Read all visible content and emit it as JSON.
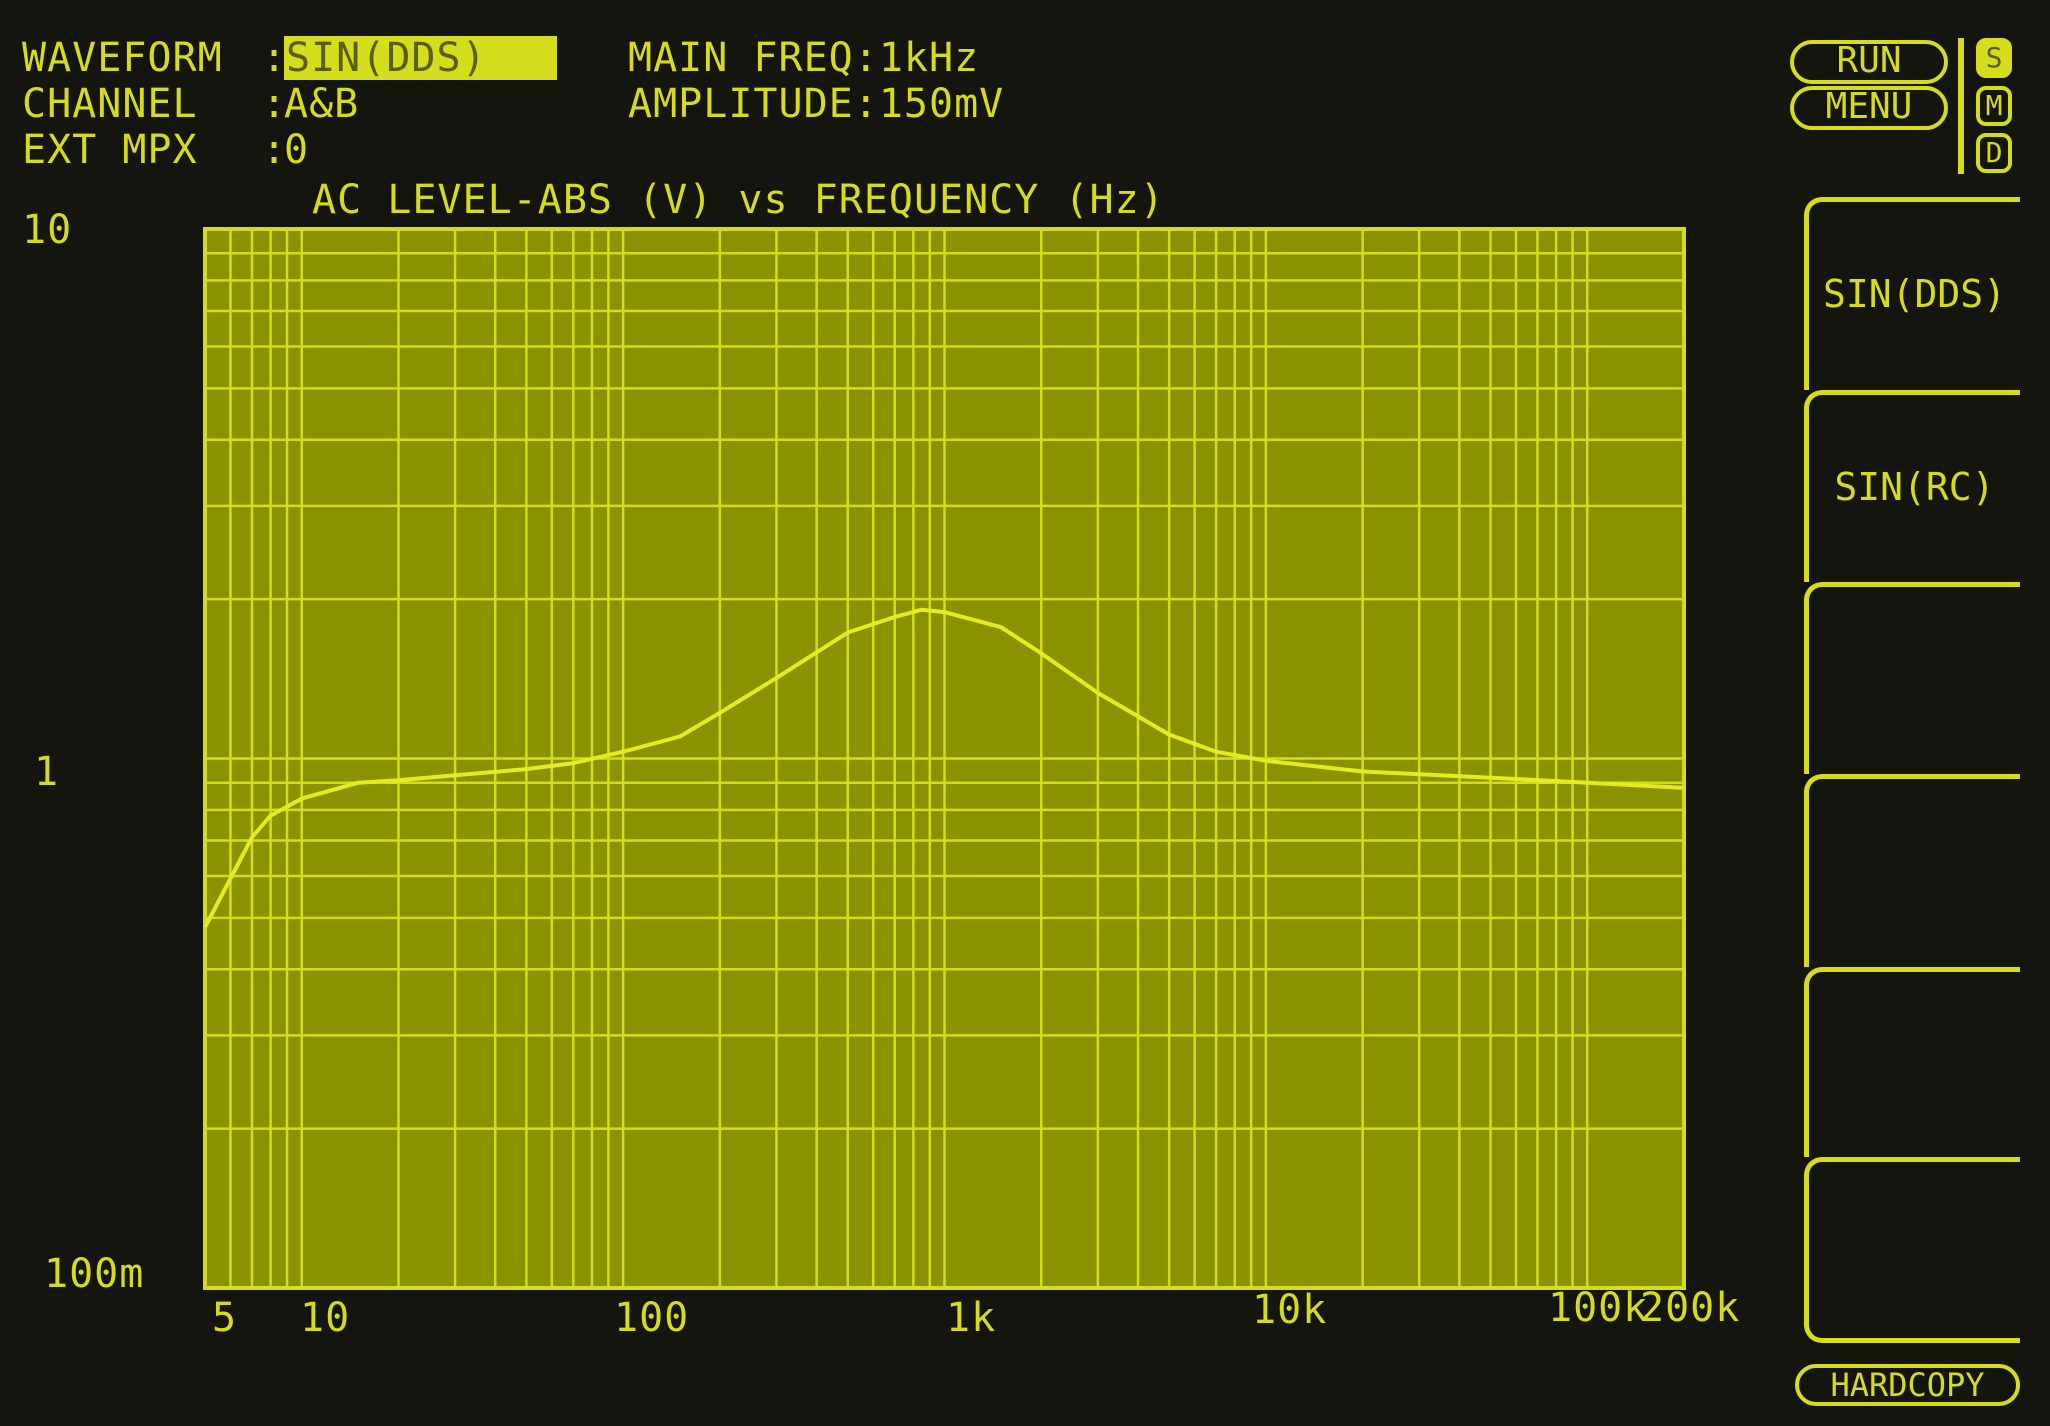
{
  "header": {
    "waveform_label": "WAVEFORM",
    "waveform_value": "SIN(DDS)",
    "channel_label": "CHANNEL",
    "channel_value": "A&B",
    "ext_mpx_label": "EXT MPX",
    "ext_mpx_value": "0",
    "main_freq_label": "MAIN FREQ:",
    "main_freq_value": "1kHz",
    "amplitude_label": "AMPLITUDE:",
    "amplitude_value": "150mV"
  },
  "controls": {
    "run_label": "RUN",
    "menu_label": "MENU",
    "modes": [
      {
        "label": "S",
        "active": true
      },
      {
        "label": "M",
        "active": false
      },
      {
        "label": "D",
        "active": false
      }
    ],
    "softkeys": [
      "SIN(DDS)",
      "SIN(RC)",
      "",
      "",
      "",
      ""
    ],
    "hardcopy_label": "HARDCOPY"
  },
  "colors": {
    "background": "#151510",
    "plot_fill": "#8a9200",
    "grid": "#d4dc1c",
    "trace": "#e4ec20"
  },
  "chart_data": {
    "type": "line",
    "title": "AC LEVEL-ABS (V) vs FREQUENCY (Hz)",
    "x_scale": "log",
    "y_scale": "log",
    "xlim": [
      5,
      200000
    ],
    "ylim": [
      0.1,
      10
    ],
    "grid": true,
    "x_tick_labels": [
      {
        "value": 5,
        "label": "5"
      },
      {
        "value": 10,
        "label": "10"
      },
      {
        "value": 100,
        "label": "100"
      },
      {
        "value": 1000,
        "label": "1k"
      },
      {
        "value": 10000,
        "label": "10k"
      },
      {
        "value": 100000,
        "label": "100k"
      },
      {
        "value": 200000,
        "label": "200k"
      }
    ],
    "y_tick_labels": [
      {
        "value": 10,
        "label": "10"
      },
      {
        "value": 1,
        "label": "1"
      },
      {
        "value": 0.1,
        "label": "100m"
      }
    ],
    "series": [
      {
        "x": [
          5,
          7,
          8,
          10,
          15,
          20,
          30,
          50,
          70,
          100,
          150,
          200,
          300,
          500,
          700,
          850,
          1000,
          1500,
          2000,
          3000,
          5000,
          7000,
          10000,
          20000,
          50000,
          100000,
          200000
        ],
        "y": [
          0.48,
          0.71,
          0.78,
          0.84,
          0.9,
          0.91,
          0.93,
          0.955,
          0.98,
          1.03,
          1.1,
          1.22,
          1.42,
          1.73,
          1.85,
          1.91,
          1.89,
          1.77,
          1.58,
          1.33,
          1.11,
          1.03,
          0.99,
          0.945,
          0.92,
          0.9,
          0.88
        ]
      }
    ]
  }
}
